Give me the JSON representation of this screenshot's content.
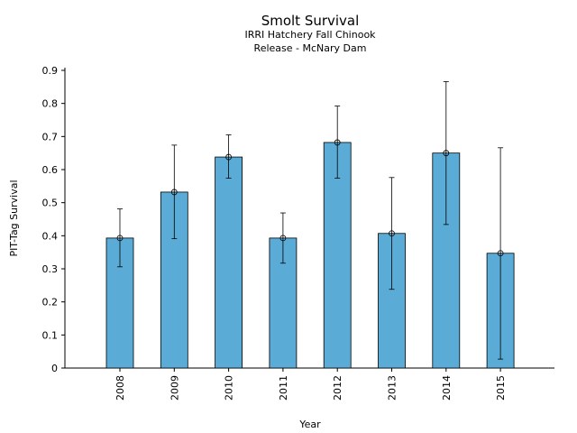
{
  "chart_data": {
    "type": "bar",
    "title": "Smolt Survival",
    "subtitle_lines": [
      "IRRI Hatchery Fall Chinook",
      "Release - McNary Dam"
    ],
    "xlabel": "Year",
    "ylabel": "PIT-Tag Survival",
    "categories": [
      "2008",
      "2009",
      "2010",
      "2011",
      "2012",
      "2013",
      "2014",
      "2015"
    ],
    "values": [
      0.393,
      0.532,
      0.638,
      0.393,
      0.682,
      0.407,
      0.65,
      0.347
    ],
    "error_lower": [
      0.306,
      0.391,
      0.574,
      0.317,
      0.574,
      0.238,
      0.434,
      0.027
    ],
    "error_upper": [
      0.481,
      0.674,
      0.705,
      0.469,
      0.792,
      0.576,
      0.866,
      0.666
    ],
    "ylim": [
      0,
      0.9
    ],
    "yticks": [
      "0",
      "0.1",
      "0.2",
      "0.3",
      "0.4",
      "0.5",
      "0.6",
      "0.7",
      "0.8",
      "0.9"
    ],
    "grid": false,
    "legend": "none",
    "colors": {
      "bar": "#5aacd6",
      "edge": "#000000"
    }
  }
}
